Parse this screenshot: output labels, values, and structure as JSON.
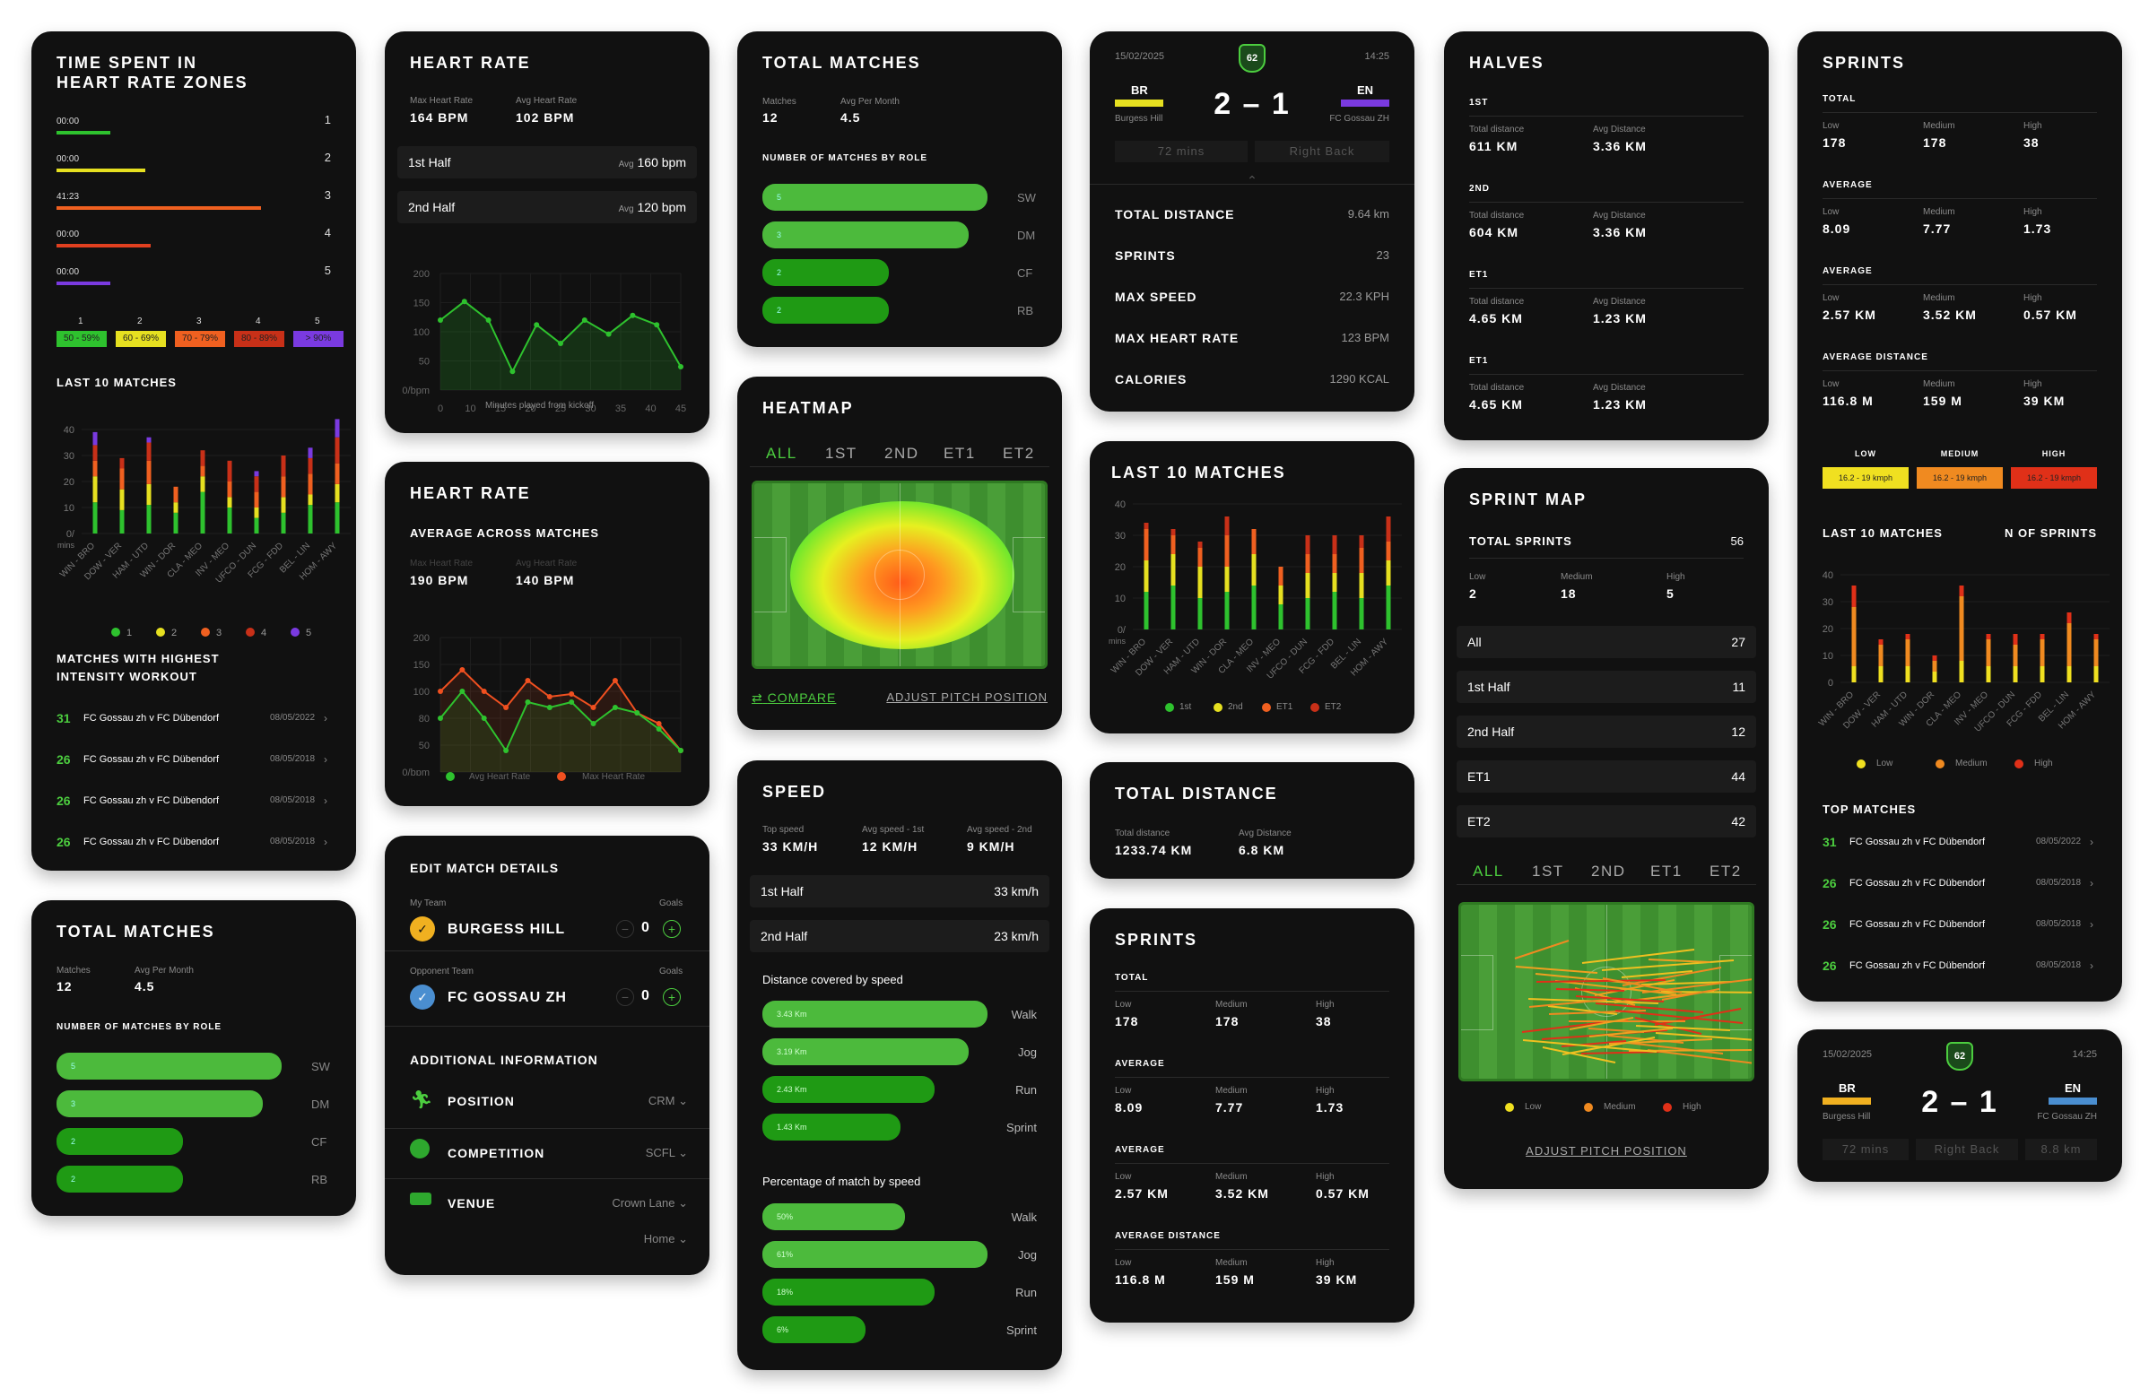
{
  "hrz": {
    "title": "TIME SPENT IN HEART RATE ZONES",
    "zones": [
      {
        "time": "00:00",
        "n": "1",
        "color": "#2ec22e",
        "frac": 0.2
      },
      {
        "time": "00:00",
        "n": "2",
        "color": "#e6e020",
        "frac": 0.33
      },
      {
        "time": "41:23",
        "n": "3",
        "color": "#f06020",
        "frac": 0.76
      },
      {
        "time": "00:00",
        "n": "4",
        "color": "#e04020",
        "frac": 0.35
      },
      {
        "time": "00:00",
        "n": "5",
        "color": "#7a3ae0",
        "frac": 0.2
      }
    ],
    "legend": [
      {
        "n": "1",
        "label": "50 - 59%",
        "color": "#2ec22e"
      },
      {
        "n": "2",
        "label": "60 - 69%",
        "color": "#e6e020"
      },
      {
        "n": "3",
        "label": "70 - 79%",
        "color": "#f06020"
      },
      {
        "n": "4",
        "label": "80 - 89%",
        "color": "#c83018"
      },
      {
        "n": "5",
        "label": "> 90%",
        "color": "#7a3ae0"
      }
    ],
    "last10": "LAST 10 MATCHES",
    "yticks": [
      "40",
      "30",
      "20",
      "10",
      "0/"
    ],
    "yunit": "mins",
    "cats": [
      "WIN - BRO",
      "DOW - VER",
      "HAM - UTD",
      "WIN - DOR",
      "CLA - MEO",
      "INV - MEO",
      "UFCO - DUN",
      "FCG - FDD",
      "BEL - LIN",
      "HOM - AWY"
    ],
    "zlegend": [
      "1",
      "2",
      "3",
      "4",
      "5"
    ],
    "intensity_title": "MATCHES WITH HIGHEST INTENSITY WORKOUT",
    "matches": [
      {
        "n": "31",
        "t": "FC Gossau zh v FC Dübendorf",
        "d": "08/05/2022"
      },
      {
        "n": "26",
        "t": "FC Gossau zh v FC Dübendorf",
        "d": "08/05/2018"
      },
      {
        "n": "26",
        "t": "FC Gossau zh v FC Dübendorf",
        "d": "08/05/2018"
      },
      {
        "n": "26",
        "t": "FC Gossau zh v FC Dübendorf",
        "d": "08/05/2018"
      }
    ]
  },
  "tm1": {
    "title": "TOTAL MATCHES",
    "matches_l": "Matches",
    "matches_v": "12",
    "avg_l": "Avg Per Month",
    "avg_v": "4.5",
    "role_title": "NUMBER OF MATCHES BY ROLE",
    "roles": [
      {
        "v": "5",
        "r": "SW",
        "frac": 0.98
      },
      {
        "v": "3",
        "r": "DM",
        "frac": 0.9
      },
      {
        "v": "2",
        "r": "CF",
        "frac": 0.55
      },
      {
        "v": "2",
        "r": "RB",
        "frac": 0.55
      }
    ]
  },
  "hr1": {
    "title": "HEART RATE",
    "max_l": "Max Heart Rate",
    "max_v": "164 BPM",
    "avg_l": "Avg Heart Rate",
    "avg_v": "102 BPM",
    "h1": "1st Half",
    "h1a": "Avg",
    "h1v": "160 bpm",
    "h2": "2nd Half",
    "h2a": "Avg",
    "h2v": "120 bpm",
    "yticks": [
      "200",
      "150",
      "100",
      "50",
      "0/bpm"
    ],
    "xticks": [
      "0",
      "10",
      "15",
      "20",
      "25",
      "30",
      "35",
      "40",
      "45"
    ],
    "xlabel": "Minutes played from kickoff"
  },
  "hr2": {
    "title": "HEART RATE",
    "sub": "AVERAGE ACROSS MATCHES",
    "max_l": "Max Heart Rate",
    "max_v": "190 BPM",
    "avg_l": "Avg Heart Rate",
    "avg_v": "140 BPM",
    "yticks": [
      "200",
      "150",
      "100",
      "80",
      "50",
      "0/bpm"
    ],
    "xticks": [
      "0",
      "10",
      "15",
      "20",
      "25",
      "30",
      "35",
      "40",
      "45"
    ],
    "leg1": "Avg Heart Rate",
    "leg2": "Max Heart Rate"
  },
  "edit": {
    "title": "EDIT MATCH DETAILS",
    "myteam_l": "My Team",
    "goals_l": "Goals",
    "myteam": "BURGESS HILL",
    "mygoals": "0",
    "opp_l": "Opponent Team",
    "opp": "FC GOSSAU ZH",
    "oppgoals": "0",
    "addl": "ADDITIONAL INFORMATION",
    "pos_l": "POSITION",
    "pos_v": "CRM",
    "comp_l": "COMPETITION",
    "comp_v": "SCFL",
    "venue_l": "VENUE",
    "venue_v": "Crown Lane",
    "venue_v2": "Home"
  },
  "tm2": {
    "title": "TOTAL MATCHES",
    "matches_l": "Matches",
    "matches_v": "12",
    "avg_l": "Avg Per Month",
    "avg_v": "4.5",
    "role_title": "NUMBER OF MATCHES BY ROLE",
    "roles": [
      {
        "v": "5",
        "r": "SW",
        "frac": 0.98
      },
      {
        "v": "3",
        "r": "DM",
        "frac": 0.9
      },
      {
        "v": "2",
        "r": "CF",
        "frac": 0.55
      },
      {
        "v": "2",
        "r": "RB",
        "frac": 0.55
      }
    ]
  },
  "heat": {
    "title": "HEATMAP",
    "tabs": [
      "ALL",
      "1ST",
      "2ND",
      "ET1",
      "ET2"
    ],
    "compare": "COMPARE",
    "adjust": "ADJUST PITCH POSITION"
  },
  "speed": {
    "title": "SPEED",
    "top_l": "Top speed",
    "top_v": "33 KM/H",
    "a1_l": "Avg speed - 1st",
    "a1_v": "12 KM/H",
    "a2_l": "Avg speed - 2nd",
    "a2_v": "9 KM/H",
    "h1": "1st Half",
    "h1v": "33 km/h",
    "h2": "2nd Half",
    "h2v": "23 km/h",
    "dist_title": "Distance covered by speed",
    "dist": [
      {
        "v": "3.43 Km",
        "l": "Walk",
        "frac": 0.98
      },
      {
        "v": "3.19 Km",
        "l": "Jog",
        "frac": 0.9
      },
      {
        "v": "2.43 Km",
        "l": "Run",
        "frac": 0.75
      },
      {
        "v": "1.43 Km",
        "l": "Sprint",
        "frac": 0.6
      }
    ],
    "pct_title": "Percentage of match by speed",
    "pct": [
      {
        "v": "50%",
        "l": "Walk",
        "frac": 0.62
      },
      {
        "v": "61%",
        "l": "Jog",
        "frac": 0.98
      },
      {
        "v": "18%",
        "l": "Run",
        "frac": 0.75
      },
      {
        "v": "6%",
        "l": "Sprint",
        "frac": 0.45
      }
    ]
  },
  "score1": {
    "date": "15/02/2025",
    "badge": "62",
    "time": "14:25",
    "home": "BR",
    "home_team": "Burgess Hill",
    "score": "2 – 1",
    "away": "EN",
    "away_team": "FC Gossau ZH",
    "mins": "72 mins",
    "pos": "Right Back",
    "stats": [
      {
        "l": "TOTAL DISTANCE",
        "v": "9.64 km"
      },
      {
        "l": "SPRINTS",
        "v": "23"
      },
      {
        "l": "MAX SPEED",
        "v": "22.3 KPH"
      },
      {
        "l": "MAX HEART RATE",
        "v": "123 BPM"
      },
      {
        "l": "CALORIES",
        "v": "1290 KCAL"
      }
    ]
  },
  "l10": {
    "title": "LAST 10 MATCHES",
    "yticks": [
      "40",
      "30",
      "20",
      "10",
      "0/"
    ],
    "yunit": "mins",
    "cats": [
      "WIN - BRO",
      "DOW - VER",
      "HAM - UTD",
      "WIN - DOR",
      "CLA - MEO",
      "INV - MEO",
      "UFCO - DUN",
      "FCG - FDD",
      "BEL - LIN",
      "HOM - AWY"
    ],
    "legend": [
      "1st",
      "2nd",
      "ET1",
      "ET2"
    ]
  },
  "td": {
    "title": "TOTAL DISTANCE",
    "t_l": "Total distance",
    "t_v": "1233.74 KM",
    "a_l": "Avg Distance",
    "a_v": "6.8 KM"
  },
  "spr": {
    "title": "SPRINTS",
    "sections": [
      {
        "h": "TOTAL",
        "v": [
          "178",
          "178",
          "38"
        ]
      },
      {
        "h": "AVERAGE",
        "v": [
          "8.09",
          "7.77",
          "1.73"
        ]
      },
      {
        "h": "AVERAGE",
        "v": [
          "2.57 KM",
          "3.52 KM",
          "0.57 KM"
        ]
      },
      {
        "h": "AVERAGE DISTANCE",
        "v": [
          "116.8 M",
          "159 M",
          "39 KM"
        ]
      }
    ],
    "lo": "Low",
    "me": "Medium",
    "hi": "High"
  },
  "halves": {
    "title": "HALVES",
    "sections": [
      {
        "h": "1ST",
        "a": "611 KM",
        "b": "3.36 KM"
      },
      {
        "h": "2ND",
        "a": "604 KM",
        "b": "3.36 KM"
      },
      {
        "h": "ET1",
        "a": "4.65 KM",
        "b": "1.23 KM"
      },
      {
        "h": "ET1",
        "a": "4.65 KM",
        "b": "1.23 KM"
      }
    ],
    "al": "Total distance",
    "bl": "Avg Distance"
  },
  "smap": {
    "title": "SPRINT MAP",
    "total_l": "TOTAL SPRINTS",
    "total_v": "56",
    "lo": "Low",
    "lo_v": "2",
    "me": "Medium",
    "me_v": "18",
    "hi": "High",
    "hi_v": "5",
    "rows": [
      {
        "l": "All",
        "v": "27"
      },
      {
        "l": "1st Half",
        "v": "11"
      },
      {
        "l": "2nd Half",
        "v": "12"
      },
      {
        "l": "ET1",
        "v": "44"
      },
      {
        "l": "ET2",
        "v": "42"
      }
    ],
    "tabs": [
      "ALL",
      "1ST",
      "2ND",
      "ET1",
      "ET2"
    ],
    "legend": [
      "Low",
      "Medium",
      "High"
    ],
    "adjust": "ADJUST PITCH POSITION"
  },
  "spr2": {
    "title": "SPRINTS",
    "sections": [
      {
        "h": "TOTAL",
        "v": [
          "178",
          "178",
          "38"
        ]
      },
      {
        "h": "AVERAGE",
        "v": [
          "8.09",
          "7.77",
          "1.73"
        ]
      },
      {
        "h": "AVERAGE",
        "v": [
          "2.57 KM",
          "3.52 KM",
          "0.57 KM"
        ]
      },
      {
        "h": "AVERAGE DISTANCE",
        "v": [
          "116.8 M",
          "159 M",
          "39 KM"
        ]
      }
    ],
    "lo": "Low",
    "me": "Medium",
    "hi": "High",
    "bands": [
      {
        "h": "LOW",
        "v": "16.2 - 19 kmph",
        "c": "#f0e020"
      },
      {
        "h": "MEDIUM",
        "v": "16.2 - 19 kmph",
        "c": "#f08a20"
      },
      {
        "h": "HIGH",
        "v": "16.2 - 19 kmph",
        "c": "#e03018"
      }
    ],
    "l10": "LAST 10 MATCHES",
    "nsp": "N OF SPRINTS",
    "yticks": [
      "40",
      "30",
      "20",
      "10",
      "0"
    ],
    "cats": [
      "WIN - BRO",
      "DOW - VER",
      "HAM - UTD",
      "WIN - DOR",
      "CLA - MEO",
      "INV - MEO",
      "UFCO - DUN",
      "FCG - FDD",
      "BEL - LIN",
      "HOM - AWY"
    ],
    "legend": [
      "Low",
      "Medium",
      "High"
    ],
    "top": "TOP MATCHES",
    "matches": [
      {
        "n": "31",
        "t": "FC Gossau zh v FC Dübendorf",
        "d": "08/05/2022"
      },
      {
        "n": "26",
        "t": "FC Gossau zh v FC Dübendorf",
        "d": "08/05/2018"
      },
      {
        "n": "26",
        "t": "FC Gossau zh v FC Dübendorf",
        "d": "08/05/2018"
      },
      {
        "n": "26",
        "t": "FC Gossau zh v FC Dübendorf",
        "d": "08/05/2018"
      }
    ]
  },
  "score2": {
    "date": "15/02/2025",
    "badge": "62",
    "time": "14:25",
    "home": "BR",
    "home_team": "Burgess Hill",
    "score": "2 – 1",
    "away": "EN",
    "away_team": "FC Gossau ZH",
    "mins": "72 mins",
    "pos": "Right Back",
    "dist": "8.8 km"
  }
}
